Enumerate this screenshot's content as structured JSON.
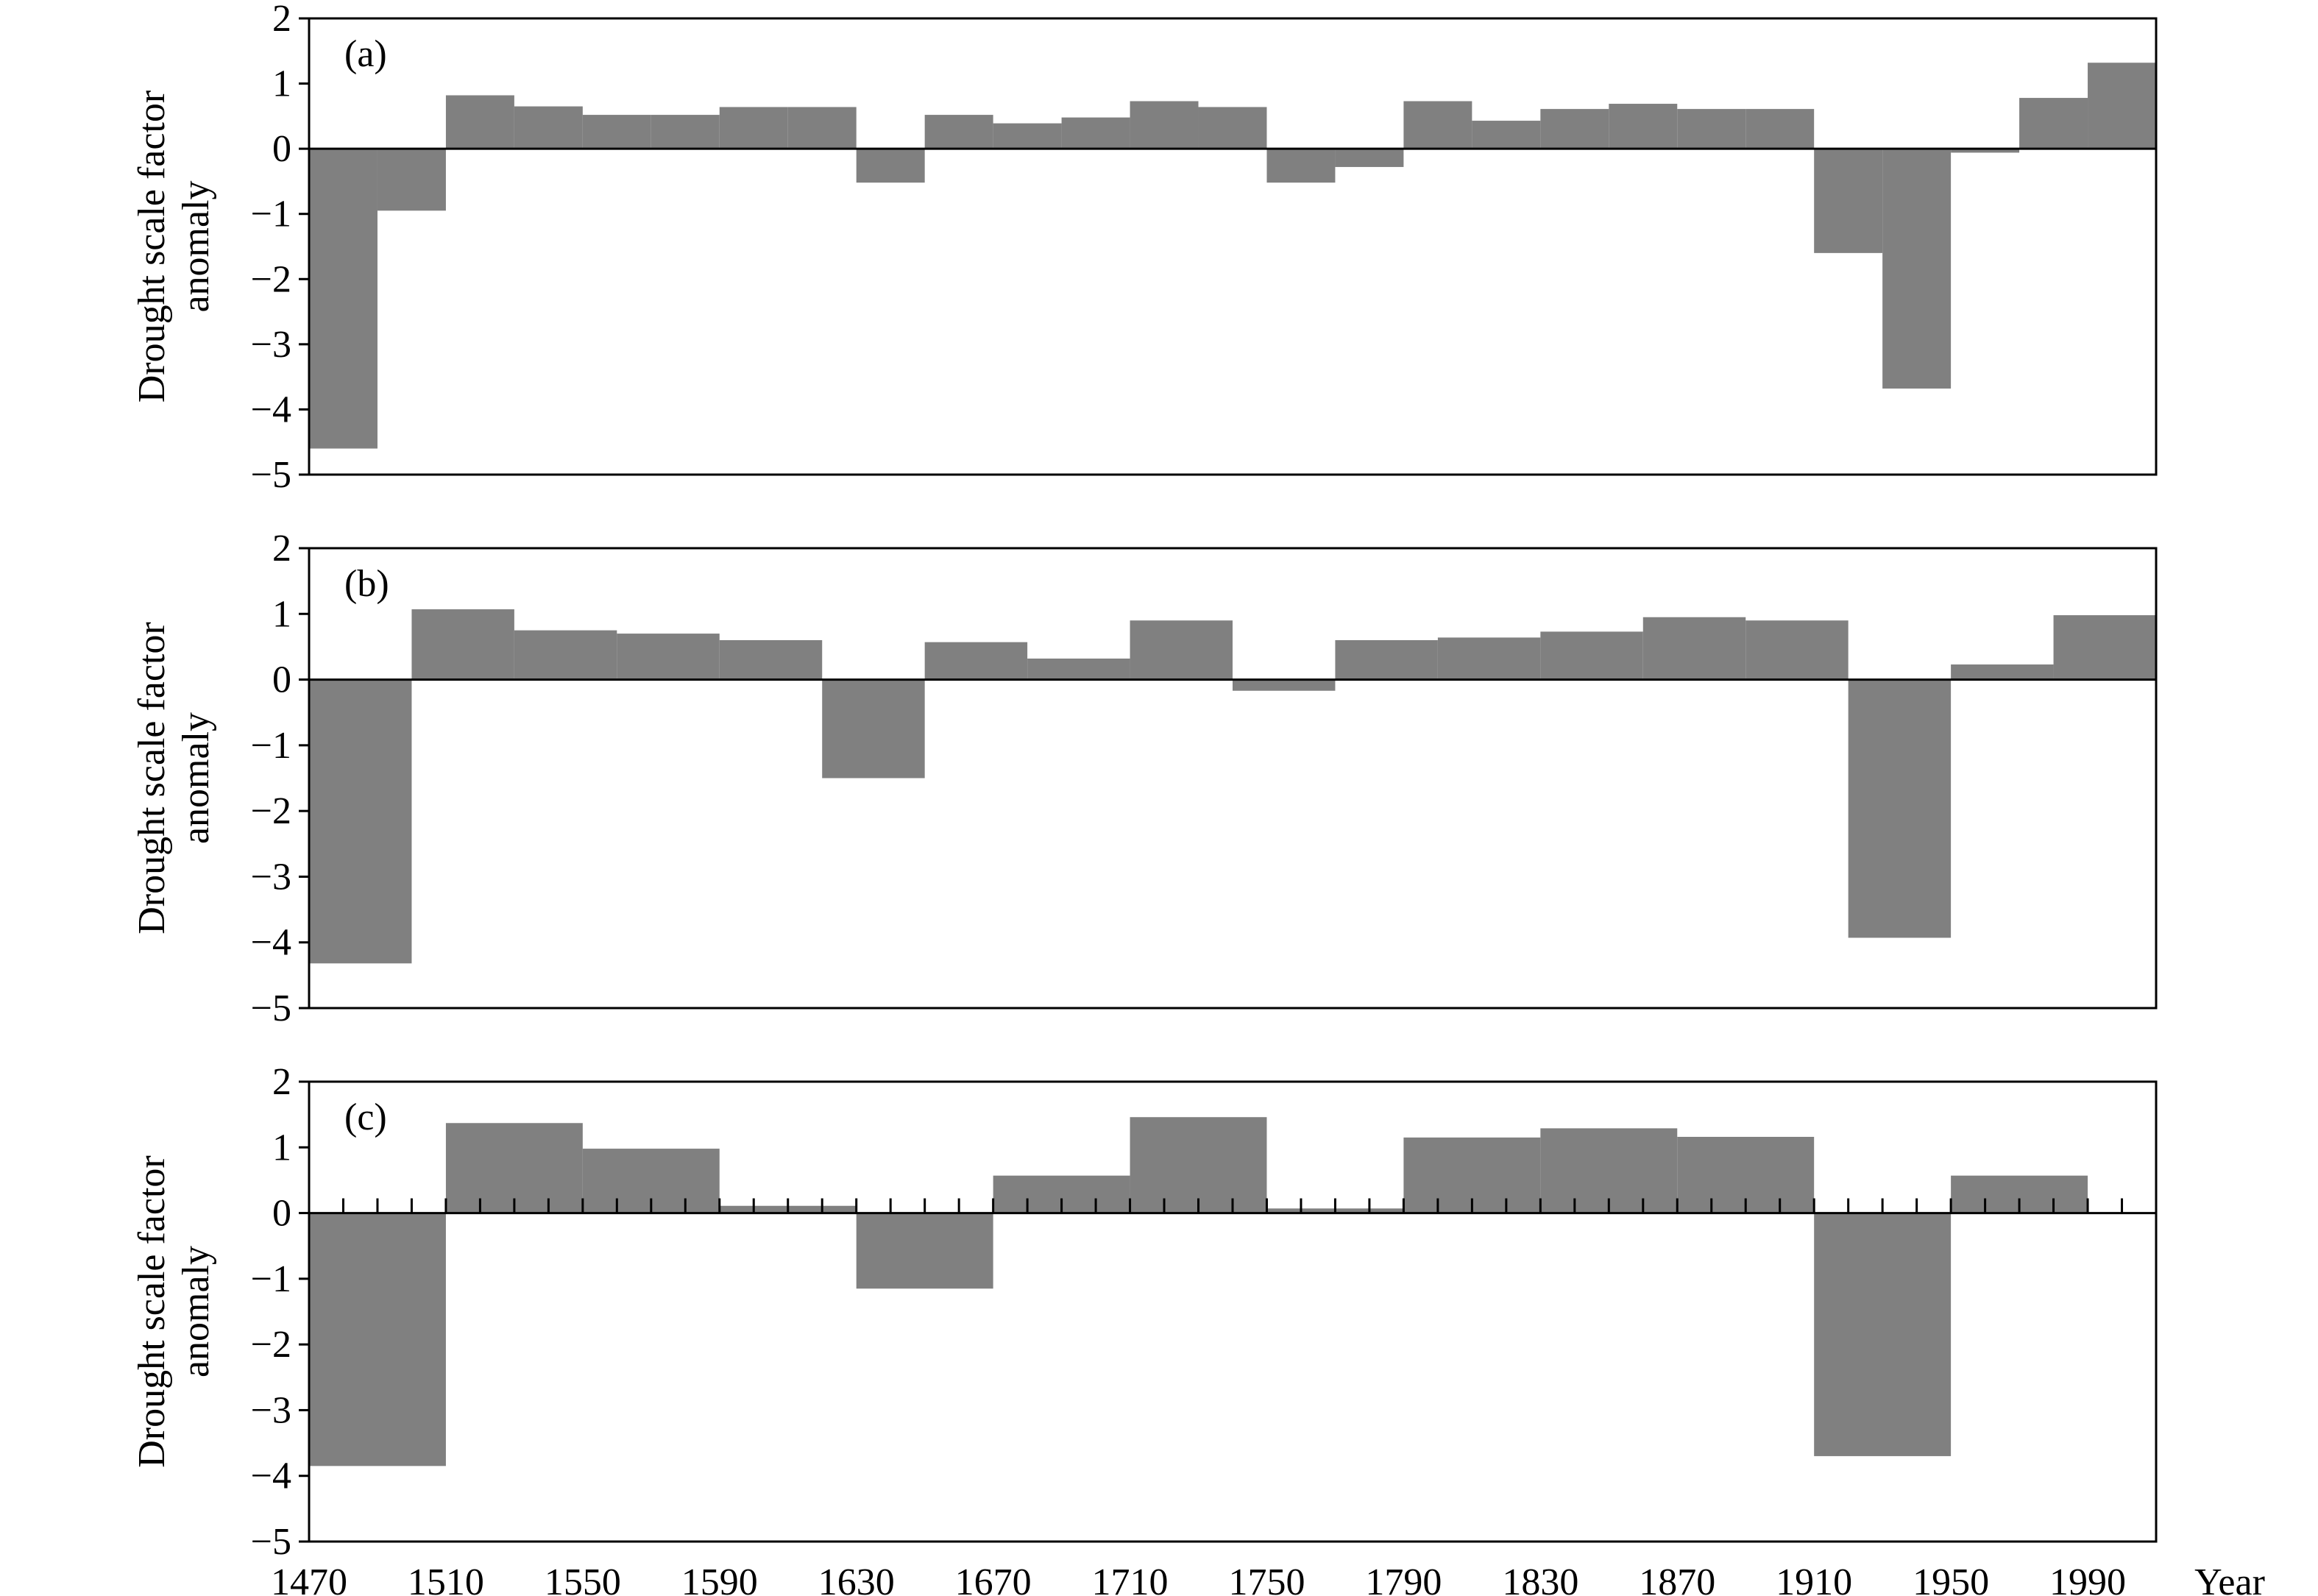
{
  "chart_data": [
    {
      "type": "bar",
      "panel_label": "(a)",
      "ylabel": [
        "Drought scale factor",
        "anomaly"
      ],
      "ylim": [
        -5,
        2
      ],
      "yticks": [
        2,
        1,
        0,
        -1,
        -2,
        -3,
        -4,
        -5
      ],
      "ytick_labels": [
        "2",
        "1",
        "0",
        "−1",
        "−2",
        "−3",
        "−4",
        "−5"
      ],
      "xlim": [
        1470,
        2010
      ],
      "bar_width_years": 20,
      "color": "#808080",
      "show_x_minor_ticks": false,
      "bars": [
        {
          "x": 1470,
          "value": -4.6
        },
        {
          "x": 1490,
          "value": -0.95
        },
        {
          "x": 1510,
          "value": 0.82
        },
        {
          "x": 1530,
          "value": 0.65
        },
        {
          "x": 1550,
          "value": 0.52
        },
        {
          "x": 1570,
          "value": 0.52
        },
        {
          "x": 1590,
          "value": 0.64
        },
        {
          "x": 1610,
          "value": 0.64
        },
        {
          "x": 1630,
          "value": -0.52
        },
        {
          "x": 1650,
          "value": 0.52
        },
        {
          "x": 1670,
          "value": 0.39
        },
        {
          "x": 1690,
          "value": 0.48
        },
        {
          "x": 1710,
          "value": 0.73
        },
        {
          "x": 1730,
          "value": 0.64
        },
        {
          "x": 1750,
          "value": -0.52
        },
        {
          "x": 1770,
          "value": -0.28
        },
        {
          "x": 1790,
          "value": 0.73
        },
        {
          "x": 1810,
          "value": 0.43
        },
        {
          "x": 1830,
          "value": 0.61
        },
        {
          "x": 1850,
          "value": 0.69
        },
        {
          "x": 1870,
          "value": 0.61
        },
        {
          "x": 1890,
          "value": 0.61
        },
        {
          "x": 1910,
          "value": -1.6
        },
        {
          "x": 1930,
          "value": -3.68
        },
        {
          "x": 1950,
          "value": -0.06
        },
        {
          "x": 1970,
          "value": 0.78
        },
        {
          "x": 1990,
          "value": 1.32
        }
      ]
    },
    {
      "type": "bar",
      "panel_label": "(b)",
      "ylabel": [
        "Drought scale factor",
        "anomaly"
      ],
      "ylim": [
        -5,
        2
      ],
      "yticks": [
        2,
        1,
        0,
        -1,
        -2,
        -3,
        -4,
        -5
      ],
      "ytick_labels": [
        "2",
        "1",
        "0",
        "−1",
        "−2",
        "−3",
        "−4",
        "−5"
      ],
      "xlim": [
        1470,
        2010
      ],
      "bar_width_years": 30,
      "color": "#808080",
      "show_x_minor_ticks": false,
      "bars": [
        {
          "x": 1470,
          "value": -4.32
        },
        {
          "x": 1500,
          "value": 1.07
        },
        {
          "x": 1530,
          "value": 0.75
        },
        {
          "x": 1560,
          "value": 0.7
        },
        {
          "x": 1590,
          "value": 0.6
        },
        {
          "x": 1620,
          "value": -1.5
        },
        {
          "x": 1650,
          "value": 0.57
        },
        {
          "x": 1680,
          "value": 0.32
        },
        {
          "x": 1710,
          "value": 0.9
        },
        {
          "x": 1740,
          "value": -0.17
        },
        {
          "x": 1770,
          "value": 0.6
        },
        {
          "x": 1800,
          "value": 0.64
        },
        {
          "x": 1830,
          "value": 0.73
        },
        {
          "x": 1860,
          "value": 0.95
        },
        {
          "x": 1890,
          "value": 0.9
        },
        {
          "x": 1920,
          "value": -3.93
        },
        {
          "x": 1950,
          "value": 0.23
        },
        {
          "x": 1980,
          "value": 0.98
        }
      ]
    },
    {
      "type": "bar",
      "panel_label": "(c)",
      "ylabel": [
        "Drought scale factor",
        "anomaly"
      ],
      "ylim": [
        -5,
        2
      ],
      "yticks": [
        2,
        1,
        0,
        -1,
        -2,
        -3,
        -4,
        -5
      ],
      "ytick_labels": [
        "2",
        "1",
        "0",
        "−1",
        "−2",
        "−3",
        "−4",
        "−5"
      ],
      "xlim": [
        1470,
        2010
      ],
      "bar_width_years": 40,
      "color": "#808080",
      "show_x_minor_ticks": true,
      "minor_tick_step_years": 10,
      "x_tick_labels": [
        "1470",
        "1510",
        "1550",
        "1590",
        "1630",
        "1670",
        "1710",
        "1750",
        "1790",
        "1830",
        "1870",
        "1910",
        "1950",
        "1990"
      ],
      "x_tick_values": [
        1470,
        1510,
        1550,
        1590,
        1630,
        1670,
        1710,
        1750,
        1790,
        1830,
        1870,
        1910,
        1950,
        1990
      ],
      "xlabel": "Year",
      "bars": [
        {
          "x": 1470,
          "value": -3.85
        },
        {
          "x": 1510,
          "value": 1.37
        },
        {
          "x": 1550,
          "value": 0.98
        },
        {
          "x": 1590,
          "value": 0.11
        },
        {
          "x": 1630,
          "value": -1.15
        },
        {
          "x": 1670,
          "value": 0.57
        },
        {
          "x": 1710,
          "value": 1.46
        },
        {
          "x": 1750,
          "value": 0.07
        },
        {
          "x": 1790,
          "value": 1.15
        },
        {
          "x": 1830,
          "value": 1.29
        },
        {
          "x": 1870,
          "value": 1.16
        },
        {
          "x": 1910,
          "value": -3.7
        },
        {
          "x": 1950,
          "value": 0.57
        }
      ]
    }
  ]
}
